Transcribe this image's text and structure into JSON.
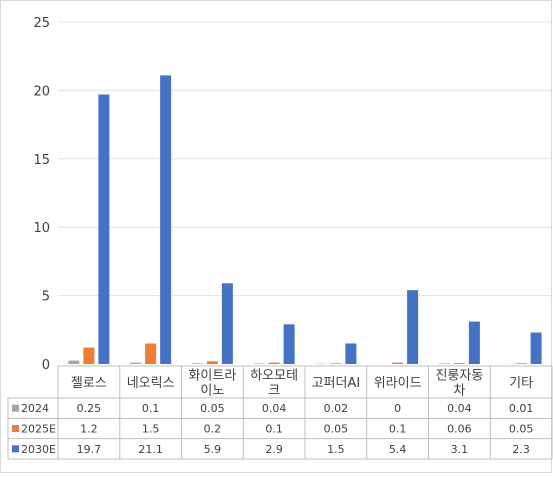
{
  "chart_data": {
    "type": "bar",
    "title": "",
    "xlabel": "",
    "ylabel": "",
    "ylim": [
      0,
      25
    ],
    "yticks": [
      0,
      5,
      10,
      15,
      20,
      25
    ],
    "grid": true,
    "legend": "data-table",
    "categories": [
      "젤로스",
      "네오릭스",
      "화이트라이노",
      "하오모테크",
      "고퍼더AI",
      "위라이드",
      "진룽자동차",
      "기타"
    ],
    "category_lines": [
      [
        "젤로스"
      ],
      [
        "네오릭스"
      ],
      [
        "화이트라",
        "이노"
      ],
      [
        "하오모테",
        "크"
      ],
      [
        "고퍼더AI"
      ],
      [
        "위라이드"
      ],
      [
        "진룽자동",
        "차"
      ],
      [
        "기타"
      ]
    ],
    "series": [
      {
        "name": "2024",
        "color": "#a5a5a5",
        "values": [
          0.25,
          0.1,
          0.05,
          0.04,
          0.02,
          0,
          0.04,
          0.01
        ],
        "labels": [
          "0.25",
          "0.1",
          "0.05",
          "0.04",
          "0.02",
          "0",
          "0.04",
          "0.01"
        ]
      },
      {
        "name": "2025E",
        "color": "#ed7d31",
        "values": [
          1.2,
          1.5,
          0.2,
          0.1,
          0.05,
          0.1,
          0.06,
          0.05
        ],
        "labels": [
          "1.2",
          "1.5",
          "0.2",
          "0.1",
          "0.05",
          "0.1",
          "0.06",
          "0.05"
        ]
      },
      {
        "name": "2030E",
        "color": "#4472c4",
        "values": [
          19.7,
          21.1,
          5.9,
          2.9,
          1.5,
          5.4,
          3.1,
          2.3
        ],
        "labels": [
          "19.7",
          "21.1",
          "5.9",
          "2.9",
          "1.5",
          "5.4",
          "3.1",
          "2.3"
        ]
      }
    ]
  }
}
